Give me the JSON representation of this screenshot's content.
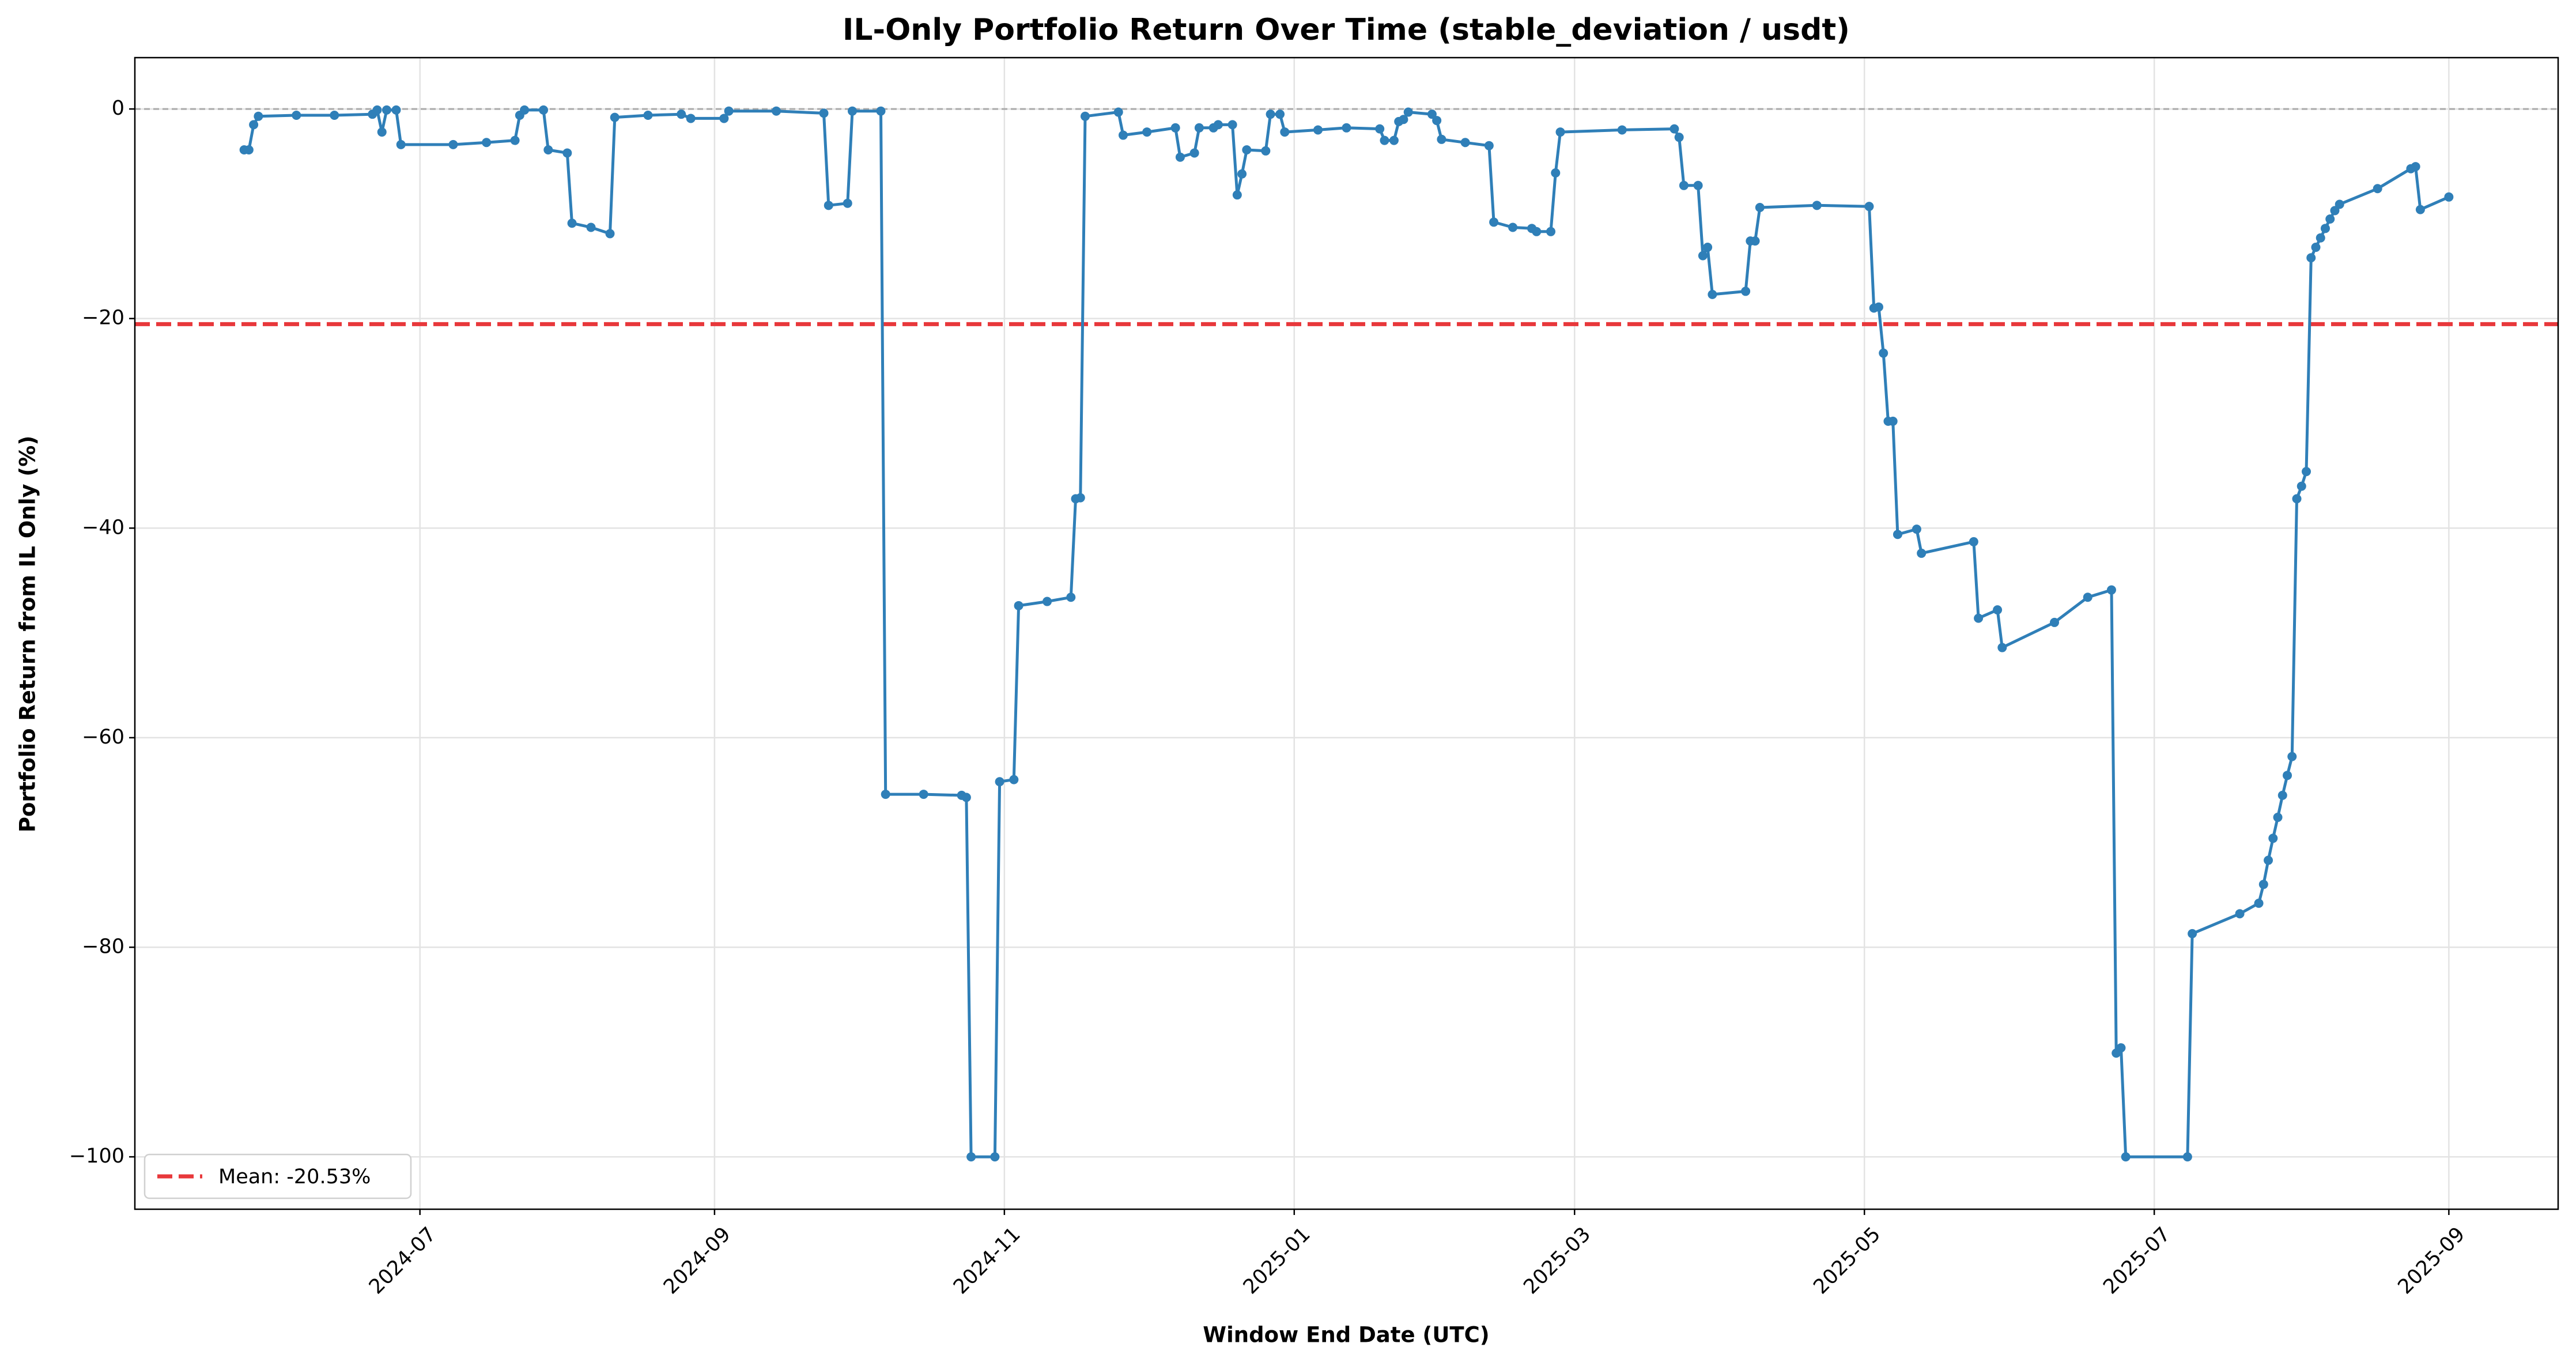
{
  "chart_data": {
    "type": "line",
    "title": "IL-Only Portfolio Return Over Time (stable_deviation / usdt)",
    "xlabel": "Window End Date (UTC)",
    "ylabel": "Portfolio Return from IL Only (%)",
    "x": [
      "2024-05-25",
      "2024-05-26",
      "2024-05-27",
      "2024-05-28",
      "2024-06-05",
      "2024-06-13",
      "2024-06-21",
      "2024-06-22",
      "2024-06-23",
      "2024-06-24",
      "2024-06-26",
      "2024-06-27",
      "2024-07-08",
      "2024-07-15",
      "2024-07-21",
      "2024-07-22",
      "2024-07-23",
      "2024-07-27",
      "2024-07-28",
      "2024-08-01",
      "2024-08-02",
      "2024-08-06",
      "2024-08-10",
      "2024-08-11",
      "2024-08-18",
      "2024-08-25",
      "2024-08-27",
      "2024-09-03",
      "2024-09-04",
      "2024-09-14",
      "2024-09-24",
      "2024-09-25",
      "2024-09-29",
      "2024-09-30",
      "2024-10-06",
      "2024-10-07",
      "2024-10-15",
      "2024-10-23",
      "2024-10-24",
      "2024-10-25",
      "2024-10-30",
      "2024-10-31",
      "2024-11-03",
      "2024-11-04",
      "2024-11-10",
      "2024-11-15",
      "2024-11-16",
      "2024-11-17",
      "2024-11-18",
      "2024-11-25",
      "2024-11-26",
      "2024-12-01",
      "2024-12-07",
      "2024-12-08",
      "2024-12-11",
      "2024-12-12",
      "2024-12-15",
      "2024-12-16",
      "2024-12-19",
      "2024-12-20",
      "2024-12-21",
      "2024-12-22",
      "2024-12-26",
      "2024-12-27",
      "2024-12-29",
      "2024-12-30",
      "2025-01-06",
      "2025-01-12",
      "2025-01-19",
      "2025-01-20",
      "2025-01-22",
      "2025-01-23",
      "2025-01-24",
      "2025-01-25",
      "2025-01-30",
      "2025-01-31",
      "2025-02-01",
      "2025-02-06",
      "2025-02-11",
      "2025-02-12",
      "2025-02-16",
      "2025-02-20",
      "2025-02-21",
      "2025-02-24",
      "2025-02-25",
      "2025-02-26",
      "2025-03-11",
      "2025-03-22",
      "2025-03-23",
      "2025-03-24",
      "2025-03-27",
      "2025-03-28",
      "2025-03-29",
      "2025-03-30",
      "2025-04-06",
      "2025-04-07",
      "2025-04-08",
      "2025-04-09",
      "2025-04-21",
      "2025-05-02",
      "2025-05-03",
      "2025-05-04",
      "2025-05-05",
      "2025-05-06",
      "2025-05-07",
      "2025-05-08",
      "2025-05-12",
      "2025-05-13",
      "2025-05-24",
      "2025-05-25",
      "2025-05-29",
      "2025-05-30",
      "2025-06-10",
      "2025-06-17",
      "2025-06-22",
      "2025-06-23",
      "2025-06-24",
      "2025-06-25",
      "2025-07-08",
      "2025-07-09",
      "2025-07-19",
      "2025-07-23",
      "2025-07-24",
      "2025-07-25",
      "2025-07-26",
      "2025-07-27",
      "2025-07-28",
      "2025-07-29",
      "2025-07-30",
      "2025-07-31",
      "2025-08-01",
      "2025-08-02",
      "2025-08-03",
      "2025-08-04",
      "2025-08-05",
      "2025-08-06",
      "2025-08-07",
      "2025-08-08",
      "2025-08-09",
      "2025-08-17",
      "2025-08-24",
      "2025-08-25",
      "2025-08-26",
      "2025-09-01"
    ],
    "series": [
      {
        "color": "#2f7fb8",
        "values": [
          -3.9,
          -3.9,
          -1.5,
          -0.7,
          -0.6,
          -0.6,
          -0.5,
          -0.1,
          -2.2,
          -0.1,
          -0.1,
          -3.4,
          -3.4,
          -3.2,
          -3.0,
          -0.6,
          -0.1,
          -0.1,
          -3.9,
          -4.2,
          -10.9,
          -11.3,
          -11.9,
          -0.8,
          -0.6,
          -0.5,
          -0.9,
          -0.9,
          -0.2,
          -0.2,
          -0.4,
          -9.2,
          -9.0,
          -0.2,
          -0.2,
          -65.4,
          -65.4,
          -65.5,
          -65.7,
          -100,
          -100,
          -64.2,
          -64.0,
          -47.4,
          -47.0,
          -46.6,
          -37.2,
          -37.1,
          -0.7,
          -0.3,
          -2.5,
          -2.2,
          -1.8,
          -4.6,
          -4.2,
          -1.8,
          -1.8,
          -1.5,
          -1.5,
          -8.2,
          -6.2,
          -3.9,
          -4.0,
          -0.5,
          -0.5,
          -2.2,
          -2.0,
          -1.8,
          -1.9,
          -3.0,
          -3.0,
          -1.2,
          -1.0,
          -0.3,
          -0.5,
          -1.1,
          -2.9,
          -3.2,
          -3.5,
          -10.8,
          -11.3,
          -11.4,
          -11.7,
          -11.7,
          -6.1,
          -2.2,
          -2.0,
          -1.9,
          -2.7,
          -7.3,
          -7.3,
          -14.0,
          -13.2,
          -17.7,
          -17.4,
          -12.6,
          -12.6,
          -9.4,
          -9.2,
          -9.3,
          -19.0,
          -18.9,
          -23.3,
          -29.8,
          -29.8,
          -40.6,
          -40.1,
          -42.4,
          -41.3,
          -48.6,
          -47.8,
          -51.4,
          -49.0,
          -46.6,
          -45.9,
          -90.1,
          -89.6,
          -100,
          -100,
          -78.7,
          -76.8,
          -75.8,
          -74.0,
          -71.7,
          -69.6,
          -67.6,
          -65.5,
          -63.6,
          -61.8,
          -37.2,
          -36.0,
          -34.6,
          -14.2,
          -13.2,
          -12.3,
          -11.4,
          -10.5,
          -9.7,
          -9.1,
          -7.6,
          -5.7,
          -5.5,
          -9.6,
          -8.4
        ]
      }
    ],
    "mean_line": {
      "value": -20.53,
      "label": "Mean: -20.53%",
      "color": "#e8383b"
    },
    "zero_line": true,
    "xlim": [
      "2024-05-02",
      "2025-09-24"
    ],
    "xticks": [
      {
        "value": "2024-07-01",
        "label": "2024-07"
      },
      {
        "value": "2024-09-01",
        "label": "2024-09"
      },
      {
        "value": "2024-11-01",
        "label": "2024-11"
      },
      {
        "value": "2025-01-01",
        "label": "2025-01"
      },
      {
        "value": "2025-03-01",
        "label": "2025-03"
      },
      {
        "value": "2025-05-01",
        "label": "2025-05"
      },
      {
        "value": "2025-07-01",
        "label": "2025-07"
      },
      {
        "value": "2025-09-01",
        "label": "2025-09"
      }
    ],
    "ylim": [
      -105,
      4.9
    ],
    "yticks": [
      {
        "value": -100,
        "label": "−100"
      },
      {
        "value": -80,
        "label": "−80"
      },
      {
        "value": -60,
        "label": "−60"
      },
      {
        "value": -40,
        "label": "−40"
      },
      {
        "value": -20,
        "label": "−20"
      },
      0
    ],
    "grid": true,
    "legend": "lower left"
  }
}
